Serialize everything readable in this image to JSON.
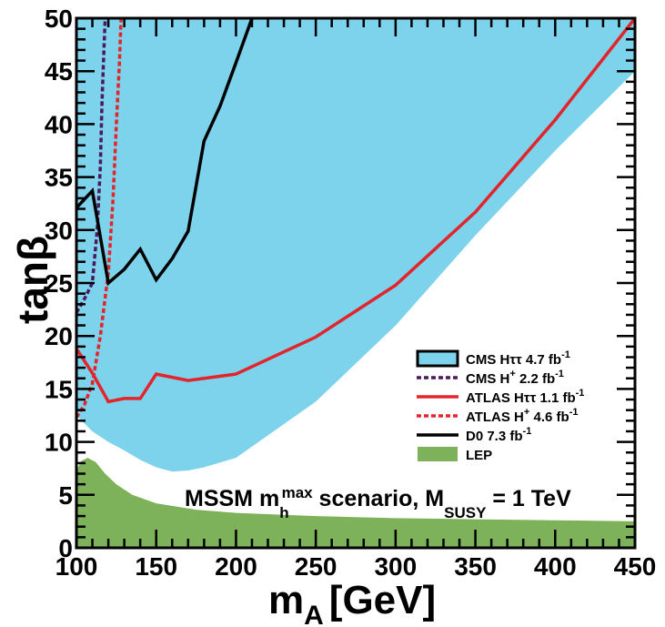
{
  "chart_data": {
    "type": "area",
    "xlabel": "m",
    "xlabel_sub": "A",
    "xlabel_unit": "[GeV]",
    "ylabel": "tanβ",
    "xlim": [
      100,
      450
    ],
    "ylim": [
      0,
      50
    ],
    "x_ticks": [
      100,
      150,
      200,
      250,
      300,
      350,
      400,
      450
    ],
    "y_ticks": [
      0,
      5,
      10,
      15,
      20,
      25,
      30,
      35,
      40,
      45,
      50
    ],
    "grid": false,
    "legend_position": "right",
    "annotation": {
      "pre": "MSSM m",
      "sub1": "h",
      "sup1": "max",
      "mid": " scenario, M",
      "sub2": "SUSY",
      "post": " = 1 TeV"
    },
    "series": [
      {
        "name": "CMS Hττ 4.7 fb",
        "name_sup": "-1",
        "style": "filled-area",
        "color": "#7dd3ec",
        "edge": "#000000",
        "lower_boundary": [
          [
            100,
            12.5
          ],
          [
            110,
            11
          ],
          [
            120,
            10
          ],
          [
            130,
            9.2
          ],
          [
            140,
            8.3
          ],
          [
            150,
            7.6
          ],
          [
            160,
            7.2
          ],
          [
            170,
            7.3
          ],
          [
            180,
            7.6
          ],
          [
            200,
            8.5
          ],
          [
            250,
            13.8
          ],
          [
            300,
            21
          ],
          [
            350,
            29.5
          ],
          [
            400,
            37.5
          ],
          [
            450,
            45
          ]
        ]
      },
      {
        "name": "CMS H",
        "name_sup": "+",
        "name_post": " 2.2 fb",
        "name_post_sup": "-1",
        "style": "dotted",
        "color": "#4b1a5e",
        "points": [
          [
            100,
            22.2
          ],
          [
            105,
            23.5
          ],
          [
            110,
            25
          ],
          [
            113,
            30
          ],
          [
            115,
            36
          ],
          [
            116,
            42
          ],
          [
            117,
            46
          ],
          [
            118,
            50
          ]
        ]
      },
      {
        "name": "ATLAS Hττ 1.1 fb",
        "name_sup": "-1",
        "style": "solid",
        "color": "#e3242b",
        "points": [
          [
            100,
            18.8
          ],
          [
            110,
            16.5
          ],
          [
            120,
            13.8
          ],
          [
            130,
            14.1
          ],
          [
            140,
            14.1
          ],
          [
            150,
            16.4
          ],
          [
            170,
            15.8
          ],
          [
            200,
            16.4
          ],
          [
            250,
            19.9
          ],
          [
            300,
            24.8
          ],
          [
            350,
            31.7
          ],
          [
            400,
            40.4
          ],
          [
            450,
            50
          ]
        ]
      },
      {
        "name": "ATLAS H",
        "name_sup": "+",
        "name_post": " 4.6 fb",
        "name_post_sup": "-1",
        "style": "dotted",
        "color": "#e3242b",
        "points": [
          [
            100,
            12.3
          ],
          [
            105,
            13.5
          ],
          [
            110,
            15.5
          ],
          [
            115,
            20
          ],
          [
            120,
            26
          ],
          [
            123,
            33
          ],
          [
            125,
            40
          ],
          [
            127,
            46
          ],
          [
            128,
            50
          ]
        ]
      },
      {
        "name": "D0 7.3 fb",
        "name_sup": "-1",
        "style": "solid",
        "color": "#000000",
        "points": [
          [
            100,
            32.1
          ],
          [
            105,
            32.9
          ],
          [
            110,
            33.7
          ],
          [
            120,
            25
          ],
          [
            130,
            26.3
          ],
          [
            140,
            28.2
          ],
          [
            150,
            25.3
          ],
          [
            160,
            27.3
          ],
          [
            170,
            29.9
          ],
          [
            180,
            38.4
          ],
          [
            190,
            41.7
          ],
          [
            200,
            45.8
          ],
          [
            210,
            50
          ]
        ]
      },
      {
        "name": "LEP",
        "style": "filled-area",
        "color": "#7eb25a",
        "upper_boundary": [
          [
            100,
            7.3
          ],
          [
            103,
            8.2
          ],
          [
            107,
            8.5
          ],
          [
            112,
            8.1
          ],
          [
            118,
            7.0
          ],
          [
            125,
            6.0
          ],
          [
            135,
            5.0
          ],
          [
            150,
            4.2
          ],
          [
            175,
            3.6
          ],
          [
            200,
            3.3
          ],
          [
            250,
            3.0
          ],
          [
            300,
            2.8
          ],
          [
            350,
            2.7
          ],
          [
            400,
            2.6
          ],
          [
            450,
            2.5
          ]
        ]
      }
    ]
  }
}
